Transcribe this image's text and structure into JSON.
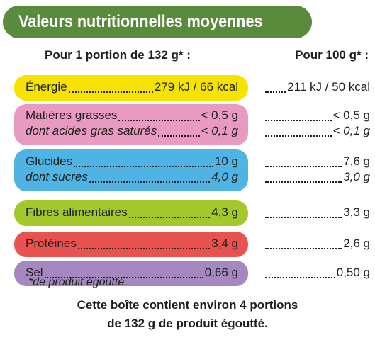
{
  "title": "Valeurs nutritionnelles moyennes",
  "columns": {
    "per_portion": "Pour 1 portion de 132 g* :",
    "per_100g": "Pour 100 g* :"
  },
  "colors": {
    "title_bg": "#5a8a3c",
    "energy": "#f6e400",
    "fat": "#e89ac0",
    "carbs": "#4fb4e4",
    "fibre": "#a3c82b",
    "protein": "#e85350",
    "salt": "#a688c1"
  },
  "rows": {
    "energy": {
      "label": "Énergie",
      "portion": "279 kJ / 66 kcal",
      "per100": "211 kJ / 50 kcal"
    },
    "fat": {
      "label": "Matières grasses",
      "portion": "< 0,5 g",
      "per100": "< 0,5 g"
    },
    "sat_fat": {
      "label": "dont acides gras saturés",
      "portion": "< 0,1 g",
      "per100": "< 0,1 g"
    },
    "carbs": {
      "label": "Glucides",
      "portion": "10 g",
      "per100": "7,6 g"
    },
    "sugars": {
      "label": "dont sucres",
      "portion": "4,0 g",
      "per100": "3,0 g"
    },
    "fibre": {
      "label": "Fibres alimentaires",
      "portion": "4,3 g",
      "per100": "3,3 g"
    },
    "protein": {
      "label": "Protéines",
      "portion": "3,4 g",
      "per100": "2,6 g"
    },
    "salt": {
      "label": "Sel",
      "portion": "0,66 g",
      "per100": "0,50 g"
    }
  },
  "footnote": "*de produit égoutté.",
  "footer": {
    "line1": "Cette boîte contient environ 4 portions",
    "line2": "de 132 g de produit égoutté."
  }
}
